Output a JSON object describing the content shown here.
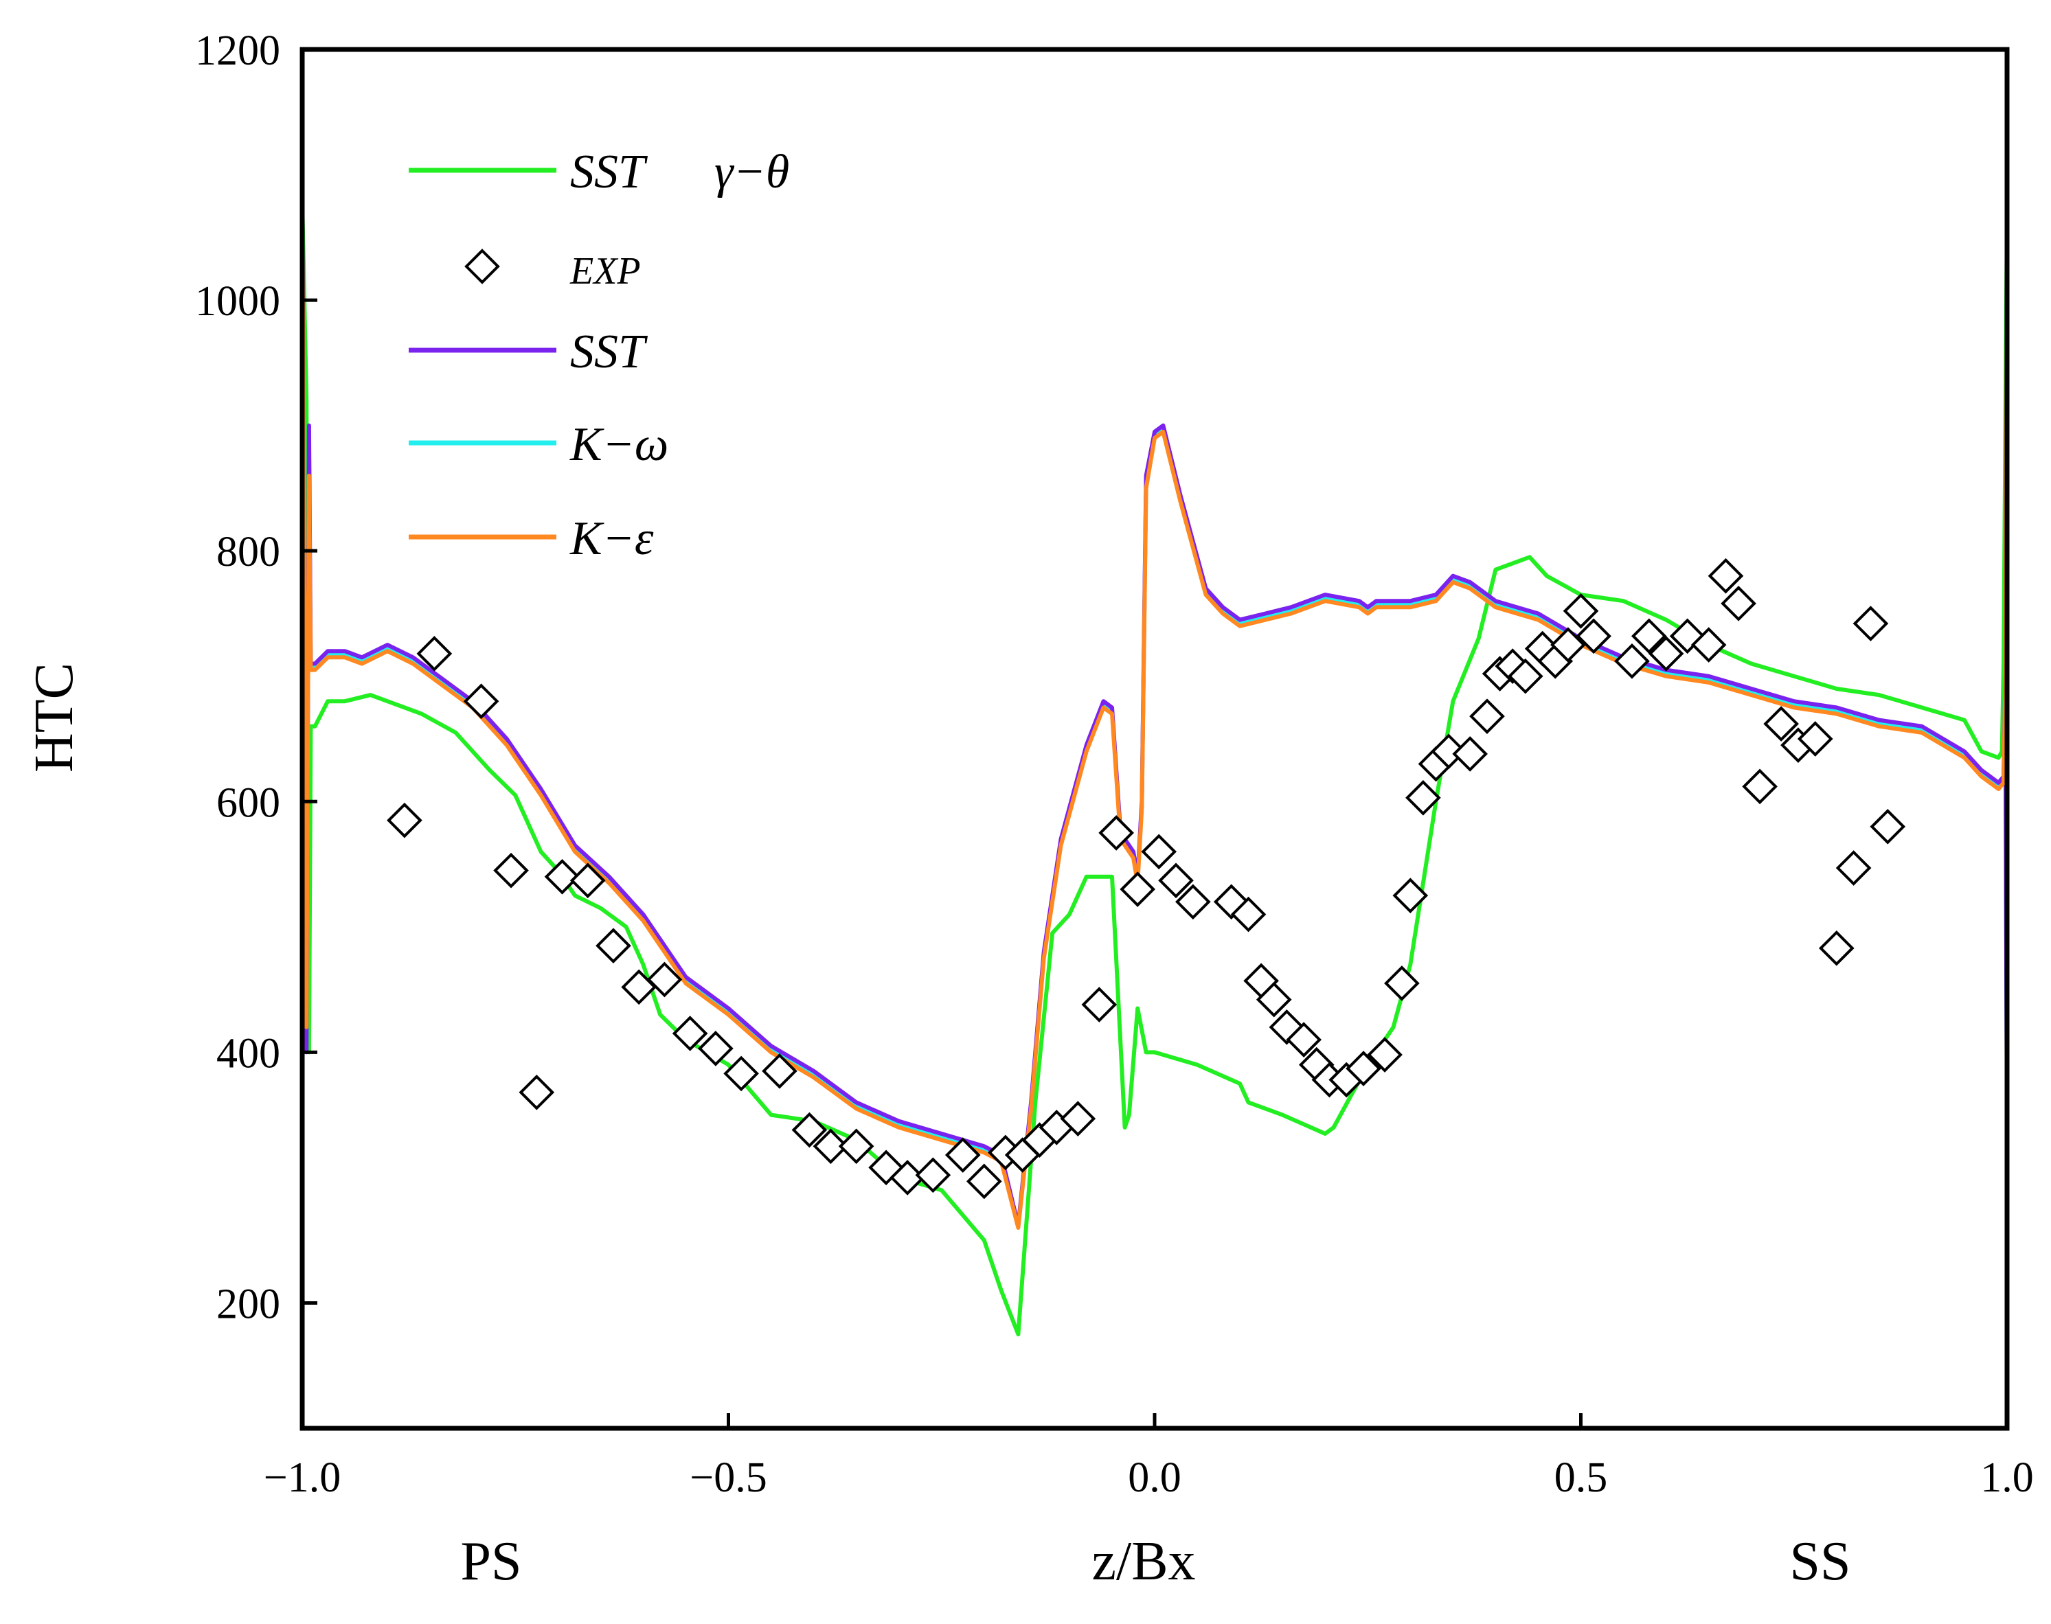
{
  "chart_data": {
    "type": "line",
    "title": "",
    "xlabel": "z/Bx",
    "ylabel": "HTC",
    "side_labels": {
      "left": "PS",
      "right": "SS"
    },
    "xlim": [
      -1.0,
      1.0
    ],
    "ylim": [
      100,
      1200
    ],
    "xticks": [
      -1.0,
      -0.5,
      0.0,
      0.5,
      1.0
    ],
    "xtick_labels": [
      "−1.0",
      "−0.5",
      "0.0",
      "0.5",
      "1.0"
    ],
    "yticks": [
      200,
      400,
      600,
      800,
      1000,
      1200
    ],
    "ytick_labels": [
      "200",
      "400",
      "600",
      "800",
      "1000",
      "1200"
    ],
    "grid": false,
    "legend_position": "top-left",
    "legend": [
      {
        "name": "SST",
        "extra": "γ−θ",
        "kind": "line",
        "color": "#22ee22"
      },
      {
        "name": "EXP",
        "kind": "marker",
        "color": "#000000"
      },
      {
        "name": "SST",
        "kind": "line",
        "color": "#7a22ee"
      },
      {
        "name": "K−ω",
        "kind": "line",
        "color": "#22eeee"
      },
      {
        "name": "K−ε",
        "kind": "line",
        "color": "#ff8820"
      }
    ],
    "series": [
      {
        "name": "SST γ−θ",
        "kind": "line",
        "color": "#22ee22",
        "x": [
          -1.0,
          -0.995,
          -0.992,
          -0.99,
          -0.985,
          -0.97,
          -0.95,
          -0.92,
          -0.9,
          -0.86,
          -0.82,
          -0.78,
          -0.75,
          -0.72,
          -0.7,
          -0.68,
          -0.65,
          -0.62,
          -0.6,
          -0.58,
          -0.55,
          -0.5,
          -0.45,
          -0.4,
          -0.35,
          -0.3,
          -0.25,
          -0.2,
          -0.18,
          -0.16,
          -0.14,
          -0.12,
          -0.1,
          -0.08,
          -0.06,
          -0.05,
          -0.035,
          -0.03,
          -0.02,
          -0.01,
          0.0,
          0.05,
          0.1,
          0.11,
          0.15,
          0.2,
          0.21,
          0.25,
          0.28,
          0.3,
          0.33,
          0.35,
          0.38,
          0.4,
          0.42,
          0.44,
          0.46,
          0.5,
          0.55,
          0.6,
          0.65,
          0.7,
          0.75,
          0.8,
          0.85,
          0.9,
          0.95,
          0.97,
          0.99,
          0.994,
          0.996,
          1.0
        ],
        "y": [
          1080,
          920,
          400,
          660,
          660,
          680,
          680,
          685,
          680,
          670,
          655,
          625,
          605,
          560,
          545,
          525,
          515,
          500,
          470,
          430,
          410,
          390,
          350,
          345,
          330,
          300,
          290,
          250,
          210,
          175,
          360,
          495,
          510,
          540,
          540,
          540,
          340,
          350,
          435,
          400,
          400,
          390,
          375,
          360,
          350,
          335,
          340,
          390,
          420,
          470,
          600,
          680,
          730,
          785,
          790,
          795,
          780,
          765,
          760,
          745,
          725,
          710,
          700,
          690,
          685,
          675,
          665,
          640,
          635,
          640,
          710,
          1070
        ]
      },
      {
        "name": "SST",
        "kind": "line",
        "color": "#7a22ee",
        "x": [
          -1.0,
          -0.995,
          -0.992,
          -0.99,
          -0.985,
          -0.97,
          -0.95,
          -0.93,
          -0.9,
          -0.87,
          -0.84,
          -0.8,
          -0.76,
          -0.72,
          -0.68,
          -0.64,
          -0.6,
          -0.58,
          -0.55,
          -0.5,
          -0.45,
          -0.4,
          -0.35,
          -0.3,
          -0.25,
          -0.2,
          -0.18,
          -0.16,
          -0.145,
          -0.13,
          -0.11,
          -0.08,
          -0.06,
          -0.05,
          -0.04,
          -0.025,
          -0.02,
          -0.015,
          -0.01,
          0.0,
          0.01,
          0.03,
          0.06,
          0.08,
          0.1,
          0.13,
          0.16,
          0.2,
          0.24,
          0.25,
          0.26,
          0.3,
          0.33,
          0.35,
          0.37,
          0.4,
          0.45,
          0.5,
          0.55,
          0.6,
          0.65,
          0.7,
          0.75,
          0.8,
          0.85,
          0.9,
          0.95,
          0.97,
          0.99,
          0.996,
          0.998,
          1.0
        ],
        "y": [
          1100,
          400,
          900,
          710,
          710,
          720,
          720,
          715,
          725,
          715,
          700,
          680,
          650,
          610,
          565,
          540,
          510,
          490,
          460,
          435,
          405,
          385,
          360,
          345,
          335,
          325,
          318,
          262,
          360,
          480,
          570,
          645,
          680,
          675,
          575,
          560,
          540,
          600,
          860,
          895,
          900,
          845,
          770,
          755,
          745,
          750,
          755,
          765,
          760,
          755,
          760,
          760,
          765,
          780,
          775,
          760,
          750,
          730,
          715,
          705,
          700,
          690,
          680,
          675,
          665,
          660,
          640,
          625,
          615,
          620,
          700,
          320
        ]
      },
      {
        "name": "K−ω",
        "kind": "line",
        "color": "#22eeee",
        "x": [
          -1.0,
          -0.995,
          -0.992,
          -0.99,
          -0.985,
          -0.97,
          -0.95,
          -0.93,
          -0.9,
          -0.87,
          -0.84,
          -0.8,
          -0.76,
          -0.72,
          -0.68,
          -0.64,
          -0.6,
          -0.58,
          -0.55,
          -0.5,
          -0.45,
          -0.4,
          -0.35,
          -0.3,
          -0.25,
          -0.2,
          -0.18,
          -0.16,
          -0.145,
          -0.13,
          -0.11,
          -0.08,
          -0.06,
          -0.05,
          -0.04,
          -0.025,
          -0.02,
          -0.015,
          -0.01,
          0.0,
          0.01,
          0.03,
          0.06,
          0.08,
          0.1,
          0.13,
          0.16,
          0.2,
          0.24,
          0.25,
          0.26,
          0.3,
          0.33,
          0.35,
          0.37,
          0.4,
          0.45,
          0.5,
          0.55,
          0.6,
          0.65,
          0.7,
          0.75,
          0.8,
          0.85,
          0.9,
          0.95,
          0.97,
          0.99,
          0.996,
          0.998,
          1.0
        ],
        "y": [
          1100,
          410,
          880,
          708,
          708,
          718,
          718,
          713,
          723,
          713,
          698,
          678,
          648,
          608,
          563,
          538,
          508,
          488,
          458,
          433,
          403,
          383,
          358,
          343,
          333,
          323,
          316,
          262,
          358,
          478,
          568,
          643,
          678,
          673,
          573,
          558,
          538,
          598,
          855,
          892,
          897,
          842,
          768,
          753,
          743,
          748,
          753,
          763,
          758,
          753,
          758,
          758,
          763,
          778,
          773,
          758,
          748,
          728,
          713,
          703,
          698,
          688,
          678,
          673,
          663,
          658,
          638,
          623,
          613,
          618,
          698,
          330
        ]
      },
      {
        "name": "K−ε",
        "kind": "line",
        "color": "#ff8820",
        "x": [
          -1.0,
          -0.995,
          -0.992,
          -0.99,
          -0.985,
          -0.97,
          -0.95,
          -0.93,
          -0.9,
          -0.87,
          -0.84,
          -0.8,
          -0.76,
          -0.72,
          -0.68,
          -0.64,
          -0.6,
          -0.58,
          -0.55,
          -0.5,
          -0.45,
          -0.4,
          -0.35,
          -0.3,
          -0.25,
          -0.2,
          -0.18,
          -0.16,
          -0.145,
          -0.13,
          -0.11,
          -0.08,
          -0.06,
          -0.05,
          -0.04,
          -0.025,
          -0.02,
          -0.015,
          -0.01,
          0.0,
          0.01,
          0.03,
          0.06,
          0.08,
          0.1,
          0.13,
          0.16,
          0.2,
          0.24,
          0.25,
          0.26,
          0.3,
          0.33,
          0.35,
          0.37,
          0.4,
          0.45,
          0.5,
          0.55,
          0.6,
          0.65,
          0.7,
          0.75,
          0.8,
          0.85,
          0.9,
          0.95,
          0.97,
          0.99,
          0.996,
          0.998,
          1.0
        ],
        "y": [
          1100,
          420,
          860,
          705,
          705,
          715,
          715,
          710,
          720,
          710,
          695,
          675,
          645,
          605,
          560,
          535,
          505,
          485,
          455,
          430,
          400,
          380,
          355,
          340,
          330,
          320,
          313,
          260,
          355,
          475,
          565,
          640,
          675,
          670,
          570,
          555,
          535,
          595,
          850,
          890,
          895,
          840,
          765,
          750,
          740,
          745,
          750,
          760,
          755,
          750,
          755,
          755,
          760,
          775,
          770,
          755,
          745,
          725,
          710,
          700,
          695,
          685,
          675,
          670,
          660,
          655,
          635,
          620,
          610,
          615,
          695,
          1040
        ]
      },
      {
        "name": "EXP",
        "kind": "marker",
        "color": "#000000",
        "x": [
          -0.88,
          -0.845,
          -0.79,
          -0.755,
          -0.725,
          -0.695,
          -0.665,
          -0.635,
          -0.605,
          -0.575,
          -0.545,
          -0.515,
          -0.485,
          -0.44,
          -0.405,
          -0.38,
          -0.35,
          -0.315,
          -0.29,
          -0.26,
          -0.225,
          -0.2,
          -0.175,
          -0.155,
          -0.135,
          -0.115,
          -0.09,
          -0.065,
          -0.045,
          -0.02,
          0.005,
          0.025,
          0.045,
          0.09,
          0.11,
          0.125,
          0.14,
          0.155,
          0.175,
          0.19,
          0.205,
          0.225,
          0.245,
          0.27,
          0.29,
          0.3,
          0.315,
          0.33,
          0.345,
          0.37,
          0.39,
          0.405,
          0.42,
          0.435,
          0.455,
          0.47,
          0.485,
          0.5,
          0.515,
          0.56,
          0.58,
          0.6,
          0.625,
          0.65,
          0.67,
          0.685,
          0.71,
          0.735,
          0.755,
          0.775,
          0.8,
          0.82,
          0.84,
          0.86
        ],
        "y": [
          585,
          718,
          680,
          545,
          368,
          540,
          537,
          485,
          452,
          458,
          415,
          403,
          383,
          385,
          338,
          325,
          325,
          308,
          300,
          302,
          318,
          297,
          320,
          318,
          330,
          340,
          347,
          438,
          575,
          530,
          560,
          537,
          520,
          520,
          510,
          457,
          442,
          420,
          410,
          390,
          378,
          378,
          387,
          398,
          455,
          525,
          603,
          630,
          640,
          638,
          668,
          702,
          708,
          700,
          722,
          712,
          725,
          752,
          732,
          712,
          732,
          718,
          732,
          725,
          780,
          758,
          612,
          662,
          645,
          650,
          483,
          547,
          742,
          580
        ]
      }
    ]
  }
}
